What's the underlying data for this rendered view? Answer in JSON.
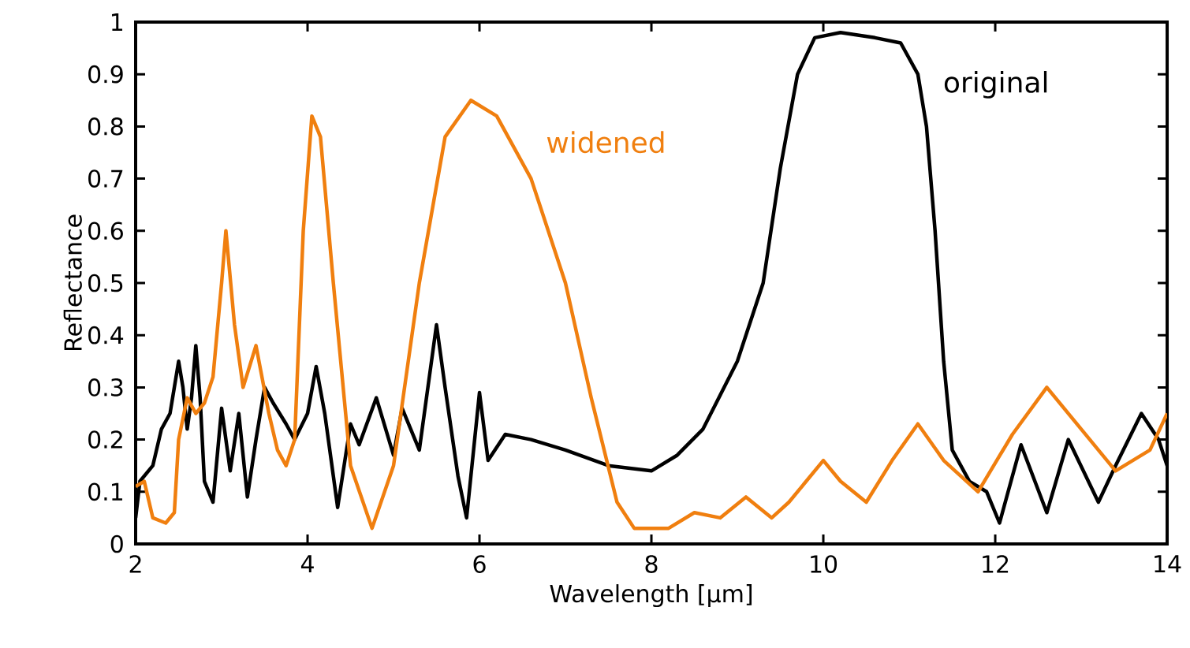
{
  "chart_data": {
    "type": "line",
    "xlabel": "Wavelength [µm]",
    "ylabel": "Reflectance",
    "xlim": [
      2,
      14
    ],
    "xticks": [
      2,
      4,
      6,
      8,
      10,
      12,
      14
    ],
    "ylim": [
      0,
      1
    ],
    "yticks": [
      0,
      0.1,
      0.2,
      0.3,
      0.4,
      0.5,
      0.6,
      0.7,
      0.8,
      0.9,
      1
    ],
    "grid": false,
    "legend": false,
    "marker": "none",
    "line_style": "solid",
    "series": [
      {
        "name": "original",
        "color": "#000000",
        "x": [
          2.0,
          2.05,
          2.2,
          2.3,
          2.4,
          2.5,
          2.55,
          2.6,
          2.65,
          2.7,
          2.75,
          2.8,
          2.9,
          3.0,
          3.1,
          3.2,
          3.3,
          3.4,
          3.5,
          3.6,
          3.75,
          3.85,
          4.0,
          4.1,
          4.2,
          4.35,
          4.5,
          4.6,
          4.8,
          5.0,
          5.1,
          5.3,
          5.5,
          5.6,
          5.75,
          5.85,
          6.0,
          6.1,
          6.3,
          6.6,
          7.0,
          7.5,
          8.0,
          8.3,
          8.6,
          9.0,
          9.3,
          9.5,
          9.7,
          9.9,
          10.2,
          10.6,
          10.9,
          11.1,
          11.2,
          11.3,
          11.4,
          11.5,
          11.7,
          11.9,
          12.05,
          12.3,
          12.6,
          12.85,
          13.2,
          13.4,
          13.7,
          13.9,
          14.0
        ],
        "values": [
          0.05,
          0.12,
          0.15,
          0.22,
          0.25,
          0.35,
          0.3,
          0.22,
          0.28,
          0.38,
          0.28,
          0.12,
          0.08,
          0.26,
          0.14,
          0.25,
          0.09,
          0.2,
          0.3,
          0.27,
          0.23,
          0.2,
          0.25,
          0.34,
          0.25,
          0.07,
          0.23,
          0.19,
          0.28,
          0.17,
          0.26,
          0.18,
          0.42,
          0.3,
          0.13,
          0.05,
          0.29,
          0.16,
          0.21,
          0.2,
          0.18,
          0.15,
          0.14,
          0.17,
          0.22,
          0.35,
          0.5,
          0.72,
          0.9,
          0.97,
          0.98,
          0.97,
          0.96,
          0.9,
          0.8,
          0.6,
          0.35,
          0.18,
          0.12,
          0.1,
          0.04,
          0.19,
          0.06,
          0.2,
          0.08,
          0.15,
          0.25,
          0.2,
          0.15
        ]
      },
      {
        "name": "widened",
        "color": "#f07f0f",
        "x": [
          2.0,
          2.1,
          2.2,
          2.35,
          2.45,
          2.5,
          2.6,
          2.7,
          2.8,
          2.9,
          3.0,
          3.05,
          3.15,
          3.25,
          3.4,
          3.55,
          3.65,
          3.75,
          3.85,
          3.95,
          4.05,
          4.15,
          4.3,
          4.5,
          4.75,
          5.0,
          5.3,
          5.6,
          5.9,
          6.2,
          6.6,
          7.0,
          7.3,
          7.6,
          7.8,
          8.2,
          8.5,
          8.8,
          9.1,
          9.4,
          9.6,
          10.0,
          10.2,
          10.5,
          10.8,
          11.1,
          11.4,
          11.8,
          12.2,
          12.6,
          13.0,
          13.4,
          13.8,
          14.0
        ],
        "values": [
          0.11,
          0.12,
          0.05,
          0.04,
          0.06,
          0.2,
          0.28,
          0.25,
          0.27,
          0.32,
          0.5,
          0.6,
          0.42,
          0.3,
          0.38,
          0.25,
          0.18,
          0.15,
          0.2,
          0.6,
          0.82,
          0.78,
          0.5,
          0.15,
          0.03,
          0.15,
          0.5,
          0.78,
          0.85,
          0.82,
          0.7,
          0.5,
          0.28,
          0.08,
          0.03,
          0.03,
          0.06,
          0.05,
          0.09,
          0.05,
          0.08,
          0.16,
          0.12,
          0.08,
          0.16,
          0.23,
          0.16,
          0.1,
          0.21,
          0.3,
          0.22,
          0.14,
          0.18,
          0.25
        ]
      }
    ]
  }
}
